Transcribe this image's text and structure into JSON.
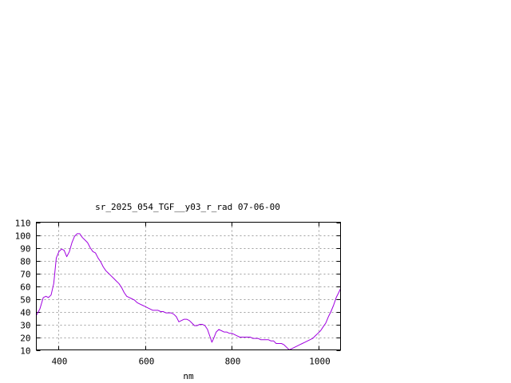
{
  "chart_data": {
    "type": "line",
    "title": "sr_2025_054_TGF__y03_r_rad 07-06-00",
    "xlabel": "nm",
    "ylabel": "",
    "xlim": [
      350,
      1050
    ],
    "ylim": [
      10,
      110
    ],
    "xticks": [
      400,
      600,
      800,
      1000
    ],
    "yticks": [
      10,
      20,
      30,
      40,
      50,
      60,
      70,
      80,
      90,
      100,
      110
    ],
    "grid": true,
    "line_color": "#a000e0",
    "series": [
      {
        "x": [
          350,
          358,
          366,
          372,
          378,
          384,
          390,
          396,
          402,
          408,
          414,
          420,
          426,
          432,
          438,
          444,
          450,
          456,
          462,
          468,
          474,
          480,
          486,
          492,
          498,
          504,
          510,
          516,
          522,
          528,
          534,
          540,
          546,
          552,
          558,
          564,
          570,
          576,
          582,
          588,
          594,
          600,
          606,
          612,
          618,
          624,
          630,
          636,
          642,
          648,
          654,
          660,
          666,
          672,
          678,
          684,
          690,
          696,
          702,
          708,
          714,
          720,
          726,
          732,
          738,
          744,
          750,
          754,
          758,
          764,
          770,
          776,
          782,
          788,
          794,
          800,
          806,
          812,
          818,
          824,
          830,
          836,
          842,
          848,
          854,
          860,
          866,
          872,
          878,
          884,
          890,
          896,
          902,
          908,
          914,
          920,
          926,
          932,
          938,
          944,
          950,
          956,
          962,
          968,
          974,
          980,
          986,
          992,
          998,
          1004,
          1010,
          1016,
          1022,
          1028,
          1034,
          1040,
          1046,
          1050
        ],
        "y": [
          37,
          42,
          51,
          52,
          51,
          53,
          62,
          82,
          87,
          89,
          88,
          83,
          87,
          94,
          99,
          101,
          101,
          98,
          96,
          94,
          90,
          87,
          86,
          82,
          79,
          75,
          72,
          70,
          68,
          66,
          64,
          62,
          59,
          55,
          52,
          51,
          50,
          49,
          47,
          46,
          45,
          44,
          43,
          42,
          41,
          41,
          41,
          40,
          40,
          39,
          39,
          39,
          38,
          36,
          32,
          33,
          34,
          34,
          33,
          31,
          29,
          29,
          30,
          30,
          29,
          26,
          20,
          16,
          19,
          24,
          26,
          25,
          24,
          24,
          23,
          23,
          22,
          21,
          20,
          20,
          20,
          20,
          20,
          19,
          19,
          19,
          18,
          18,
          18,
          18,
          17,
          17,
          15,
          15,
          15,
          14,
          12,
          10,
          11,
          12,
          13,
          14,
          15,
          16,
          17,
          18,
          19,
          21,
          23,
          25,
          28,
          31,
          36,
          40,
          45,
          51,
          55,
          58
        ]
      }
    ]
  }
}
